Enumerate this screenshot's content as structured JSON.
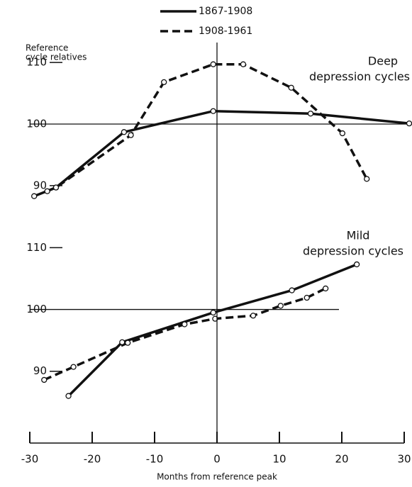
{
  "chart_data": [
    {
      "type": "line",
      "title": [
        "Deep",
        "depression cycles"
      ],
      "ylabel": [
        "Reference",
        "cycle relatives"
      ],
      "legend": "top",
      "ylim": [
        87,
        113
      ],
      "yticks": [
        90,
        100,
        110
      ],
      "series": [
        {
          "name": "1867-1908",
          "color": "#111111",
          "style": "solid",
          "x": [
            -29.3,
            -25.8,
            -14.9,
            -0.6,
            15,
            30.8
          ],
          "values": [
            88.3,
            89.7,
            98.7,
            102.1,
            101.7,
            100.1
          ]
        },
        {
          "name": "1908-1961",
          "color": "#111111",
          "style": "dashed",
          "x": [
            -27.2,
            -25.8,
            -13.8,
            -8.5,
            -0.6,
            4.2,
            11.9,
            20.1,
            24
          ],
          "values": [
            89.1,
            89.7,
            98.2,
            106.8,
            109.7,
            109.7,
            105.9,
            98.5,
            91.1
          ]
        }
      ]
    },
    {
      "type": "line",
      "title": [
        "Mild",
        "depression cycles"
      ],
      "xlabel": "Months from reference peak",
      "xlim": [
        -30,
        30
      ],
      "xticks": [
        -30,
        -20,
        -10,
        0,
        10,
        20,
        30
      ],
      "ylim": [
        84,
        112
      ],
      "yticks": [
        90,
        100,
        110
      ],
      "series": [
        {
          "name": "1867-1908",
          "color": "#111111",
          "style": "solid",
          "x": [
            -23.8,
            -15.2,
            -0.6,
            12,
            22.4
          ],
          "values": [
            86,
            94.7,
            99.5,
            103.1,
            107.3
          ]
        },
        {
          "name": "1908-1961",
          "color": "#111111",
          "style": "dashed",
          "x": [
            -27.7,
            -23,
            -14.3,
            -5.2,
            -0.3,
            5.8,
            10.2,
            14.4,
            17.4
          ],
          "values": [
            88.6,
            90.7,
            94.6,
            97.6,
            98.5,
            99,
            100.6,
            101.9,
            103.4
          ]
        }
      ]
    }
  ]
}
